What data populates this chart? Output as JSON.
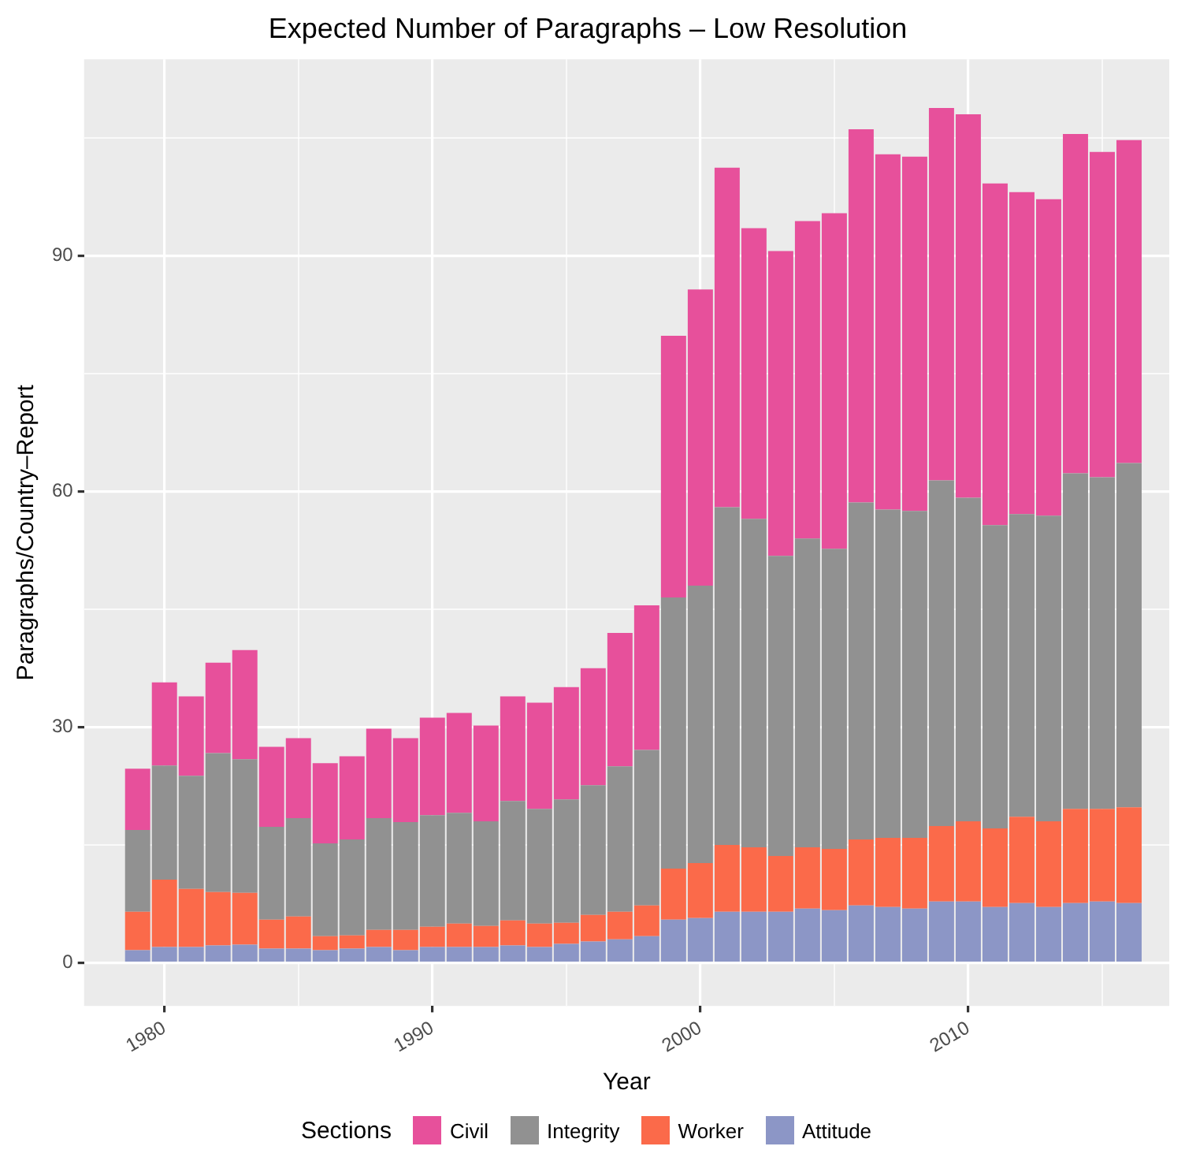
{
  "chart_data": {
    "type": "bar",
    "title": "Expected Number of Paragraphs – Low Resolution",
    "xlabel": "Year",
    "ylabel": "Paragraphs/Country–Report",
    "legend_title": "Sections",
    "stacked": true,
    "legend": "bottom",
    "grid": true,
    "x": [
      1979,
      1980,
      1981,
      1982,
      1983,
      1984,
      1985,
      1986,
      1987,
      1988,
      1989,
      1990,
      1991,
      1992,
      1993,
      1994,
      1995,
      1996,
      1997,
      1998,
      1999,
      2000,
      2001,
      2002,
      2003,
      2004,
      2005,
      2006,
      2007,
      2008,
      2009,
      2010,
      2011,
      2012,
      2013,
      2014,
      2015,
      2016
    ],
    "xlim": [
      1977,
      2017.5
    ],
    "xticks": [
      1980,
      {
        "value": 1985,
        "label": null
      },
      1990,
      {
        "value": 1995,
        "label": null
      },
      2000,
      {
        "value": 2005,
        "label": null
      },
      2010,
      {
        "value": 2015,
        "label": null
      }
    ],
    "ylim": [
      -5.5,
      115
    ],
    "yticks": [
      0,
      {
        "value": 15,
        "label": null
      },
      30,
      {
        "value": 45,
        "label": null
      },
      60,
      {
        "value": 75,
        "label": null
      },
      90,
      {
        "value": 105,
        "label": null
      }
    ],
    "series": [
      {
        "name": "Attitude",
        "color": "#8c96c6",
        "values": [
          1.6,
          2.0,
          2.0,
          2.2,
          2.3,
          1.8,
          1.8,
          1.6,
          1.8,
          2.0,
          1.6,
          2.0,
          2.0,
          2.0,
          2.2,
          2.0,
          2.4,
          2.7,
          3.0,
          3.4,
          5.5,
          5.7,
          6.5,
          6.5,
          6.5,
          6.9,
          6.7,
          7.3,
          7.1,
          6.9,
          7.8,
          7.8,
          7.1,
          7.6,
          7.1,
          7.6,
          7.8,
          7.6
        ]
      },
      {
        "name": "Worker",
        "color": "#fb6a4a",
        "values": [
          4.9,
          8.6,
          7.4,
          6.8,
          6.6,
          3.7,
          4.1,
          1.8,
          1.7,
          2.2,
          2.6,
          2.6,
          3.0,
          2.7,
          3.2,
          3.0,
          2.7,
          3.4,
          3.5,
          3.9,
          6.5,
          7.0,
          8.5,
          8.2,
          7.1,
          7.8,
          7.8,
          8.4,
          8.8,
          9.0,
          9.6,
          10.2,
          10.0,
          11.0,
          10.9,
          12.0,
          11.8,
          12.2
        ]
      },
      {
        "name": "Integrity",
        "color": "#919191",
        "values": [
          10.4,
          14.5,
          14.4,
          17.7,
          17.0,
          11.8,
          12.5,
          11.8,
          12.2,
          14.2,
          13.7,
          14.2,
          14.1,
          13.3,
          15.2,
          14.6,
          15.7,
          16.5,
          18.5,
          19.8,
          34.5,
          35.3,
          43.0,
          41.8,
          38.2,
          39.3,
          38.2,
          42.9,
          41.8,
          41.6,
          44.0,
          41.2,
          38.6,
          38.5,
          38.9,
          42.7,
          42.2,
          43.8
        ]
      },
      {
        "name": "Civil",
        "color": "#e7509b",
        "values": [
          7.8,
          10.6,
          10.1,
          11.5,
          13.9,
          10.2,
          10.2,
          10.2,
          10.6,
          11.4,
          10.7,
          12.4,
          12.7,
          12.2,
          13.3,
          13.5,
          14.3,
          14.9,
          17.0,
          18.4,
          33.3,
          37.7,
          43.2,
          37.0,
          38.8,
          40.4,
          42.7,
          47.5,
          45.2,
          45.1,
          47.4,
          48.8,
          43.5,
          41.0,
          40.3,
          43.2,
          41.4,
          41.1
        ]
      }
    ]
  }
}
